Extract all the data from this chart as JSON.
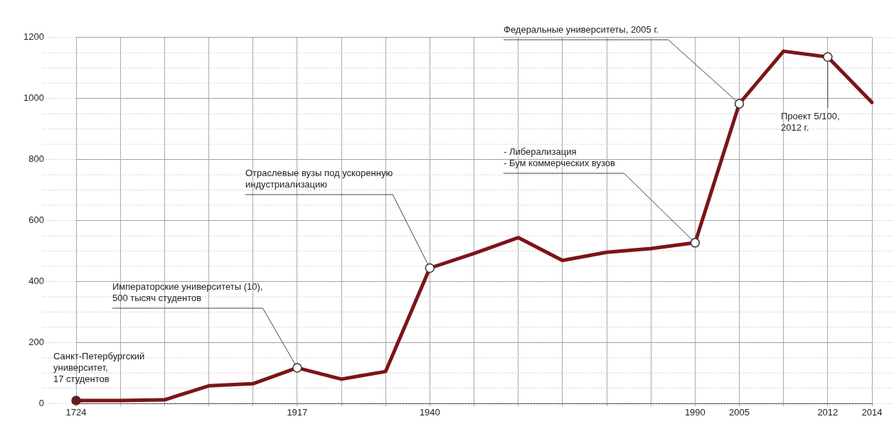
{
  "chart_data": {
    "type": "line",
    "categories": [
      "1724",
      null,
      null,
      null,
      null,
      "1917",
      null,
      null,
      "1940",
      null,
      null,
      null,
      null,
      null,
      "1990",
      "2005",
      null,
      "2012",
      "2014"
    ],
    "series": [
      {
        "color": "#7b1518",
        "values": [
          10,
          10,
          12,
          58,
          65,
          117,
          80,
          105,
          444,
          492,
          544,
          469,
          496,
          508,
          527,
          983,
          1155,
          1136,
          987
        ]
      }
    ],
    "ylim": [
      0,
      1200
    ],
    "yticks": [
      0,
      200,
      400,
      600,
      800,
      1000,
      1200
    ],
    "grid": true,
    "legend": false,
    "line_style": "solid",
    "annotations": [
      {
        "text": "Санкт-Петербургский\nуниверситет,\n17 студентов",
        "x": "1724",
        "y": 10
      },
      {
        "text": "Императорские университеты (10),\n500 тысяч студентов",
        "x": "1917",
        "y": 117
      },
      {
        "text": "Отраслевые вузы под ускоренную\nиндустриализацию",
        "x": "1940",
        "y": 444
      },
      {
        "text": "- Либерализация\n- Бум коммерческих вузов",
        "x": "1990",
        "y": 527
      },
      {
        "text": "Федеральные университеты, 2005 г.",
        "x": "2005",
        "y": 983
      },
      {
        "text": "Проект 5/100,\n2012 г.",
        "x": "2012",
        "y": 1136
      }
    ]
  }
}
